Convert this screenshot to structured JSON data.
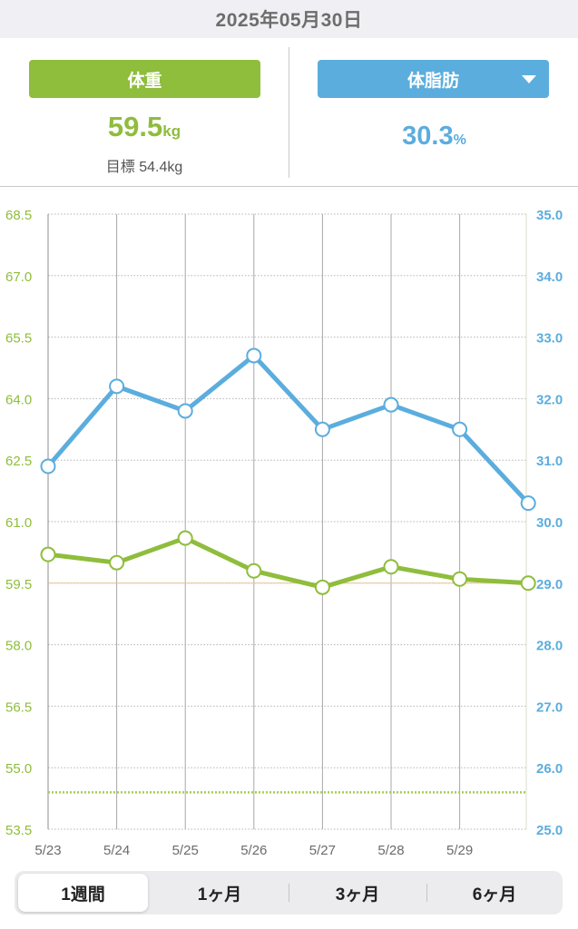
{
  "header": {
    "date": "2025年05月30日"
  },
  "weight_panel": {
    "button_label": "体重",
    "value": "59.5",
    "unit": "kg",
    "goal_label": "目標 54.4kg"
  },
  "fat_panel": {
    "button_label": "体脂肪",
    "value": "30.3",
    "unit": "%",
    "dropdown_icon": "caret-down-icon"
  },
  "colors": {
    "weight": "#8fbd3c",
    "fat": "#5badde",
    "goal_line": "#a5cf4a",
    "grid": "#b5b5b5",
    "reference_line": "#e9c49a"
  },
  "chart_data": {
    "type": "line",
    "categories": [
      "5/23",
      "5/24",
      "5/25",
      "5/26",
      "5/27",
      "5/28",
      "5/29",
      ""
    ],
    "x_tick_labels": [
      "5/23",
      "5/24",
      "5/25",
      "5/26",
      "5/27",
      "5/28",
      "5/29"
    ],
    "series": [
      {
        "name": "体重",
        "axis": "left",
        "color": "#8fbd3c",
        "values": [
          60.2,
          60.0,
          60.6,
          59.8,
          59.4,
          59.9,
          59.6,
          59.5
        ]
      },
      {
        "name": "体脂肪",
        "axis": "right",
        "color": "#5badde",
        "values": [
          30.9,
          32.2,
          31.8,
          32.7,
          31.5,
          31.9,
          31.5,
          30.3
        ]
      }
    ],
    "y_left": {
      "ylim": [
        53.5,
        68.5
      ],
      "ticks": [
        "68.5",
        "67.0",
        "65.5",
        "64.0",
        "62.5",
        "61.0",
        "59.5",
        "58.0",
        "56.5",
        "55.0",
        "53.5"
      ]
    },
    "y_right": {
      "ylim": [
        25.0,
        35.0
      ],
      "ticks": [
        "35.0",
        "34.0",
        "33.0",
        "32.0",
        "31.0",
        "30.0",
        "29.0",
        "28.0",
        "27.0",
        "26.0",
        "25.0"
      ]
    },
    "goal_weight": 54.4,
    "reference_weight": 59.5,
    "grid": true
  },
  "period_tabs": {
    "selected": "1週間",
    "items": [
      "1週間",
      "1ヶ月",
      "3ヶ月",
      "6ヶ月"
    ]
  }
}
